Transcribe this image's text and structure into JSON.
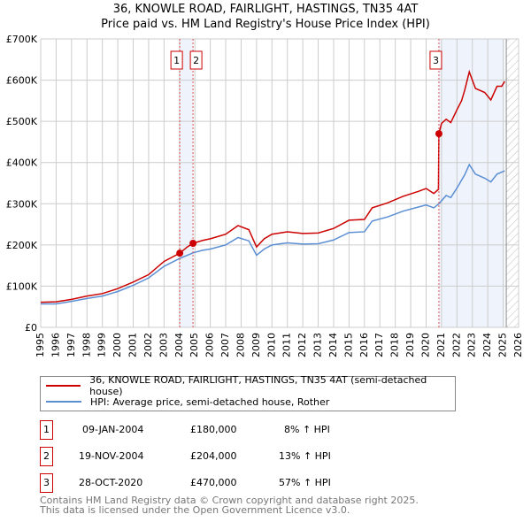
{
  "title": "36, KNOWLE ROAD, FAIRLIGHT, HASTINGS, TN35 4AT",
  "subtitle": "Price paid vs. HM Land Registry's House Price Index (HPI)",
  "chart_data": {
    "type": "line",
    "xlim": [
      1995,
      2026
    ],
    "ylim": [
      0,
      700000
    ],
    "x_ticks": [
      "1995",
      "1996",
      "1997",
      "1998",
      "1999",
      "2000",
      "2001",
      "2002",
      "2003",
      "2004",
      "2005",
      "2006",
      "2007",
      "2008",
      "2009",
      "2010",
      "2011",
      "2012",
      "2013",
      "2014",
      "2015",
      "2016",
      "2017",
      "2018",
      "2019",
      "2020",
      "2021",
      "2022",
      "2023",
      "2024",
      "2025",
      "2026"
    ],
    "y_ticks": [
      "£0",
      "£100K",
      "£200K",
      "£300K",
      "£400K",
      "£500K",
      "£600K",
      "£700K"
    ],
    "series": [
      {
        "name": "36, KNOWLE ROAD, FAIRLIGHT, HASTINGS, TN35 4AT (semi-detached house)",
        "color": "#cc0000",
        "points": [
          [
            1995,
            61000
          ],
          [
            1996,
            62000
          ],
          [
            1997,
            68000
          ],
          [
            1998,
            76000
          ],
          [
            1999,
            82000
          ],
          [
            2000,
            94000
          ],
          [
            2001,
            110000
          ],
          [
            2002,
            128000
          ],
          [
            2003,
            160000
          ],
          [
            2004.02,
            180000
          ],
          [
            2004.5,
            195000
          ],
          [
            2004.88,
            204000
          ],
          [
            2005.5,
            211000
          ],
          [
            2006,
            215000
          ],
          [
            2007,
            226000
          ],
          [
            2007.8,
            247000
          ],
          [
            2008.5,
            237000
          ],
          [
            2009.0,
            195000
          ],
          [
            2009.5,
            215000
          ],
          [
            2010,
            226000
          ],
          [
            2011,
            232000
          ],
          [
            2012,
            228000
          ],
          [
            2013,
            229000
          ],
          [
            2014,
            240000
          ],
          [
            2015,
            260000
          ],
          [
            2016,
            262000
          ],
          [
            2016.5,
            290000
          ],
          [
            2017.5,
            302000
          ],
          [
            2018.5,
            318000
          ],
          [
            2019.5,
            330000
          ],
          [
            2020,
            337000
          ],
          [
            2020.5,
            325000
          ],
          [
            2020.8,
            335000
          ],
          [
            2020.83,
            470000
          ],
          [
            2021,
            495000
          ],
          [
            2021.3,
            505000
          ],
          [
            2021.6,
            497000
          ],
          [
            2022,
            528000
          ],
          [
            2022.3,
            550000
          ],
          [
            2022.5,
            575000
          ],
          [
            2022.8,
            620000
          ],
          [
            2023.2,
            580000
          ],
          [
            2023.8,
            570000
          ],
          [
            2024.2,
            552000
          ],
          [
            2024.6,
            585000
          ],
          [
            2024.9,
            585000
          ],
          [
            2025.1,
            597000
          ]
        ]
      },
      {
        "name": "HPI: Average price, semi-detached house, Rother",
        "color": "#5b8fd4",
        "points": [
          [
            1995,
            57000
          ],
          [
            1996,
            57000
          ],
          [
            1997,
            63000
          ],
          [
            1998,
            70000
          ],
          [
            1999,
            76000
          ],
          [
            2000,
            87000
          ],
          [
            2001,
            102000
          ],
          [
            2002,
            120000
          ],
          [
            2003,
            148000
          ],
          [
            2004,
            167000
          ],
          [
            2004.9,
            181000
          ],
          [
            2005.5,
            187000
          ],
          [
            2006,
            190000
          ],
          [
            2007,
            200000
          ],
          [
            2007.8,
            218000
          ],
          [
            2008.5,
            210000
          ],
          [
            2009.0,
            175000
          ],
          [
            2009.5,
            190000
          ],
          [
            2010,
            200000
          ],
          [
            2011,
            205000
          ],
          [
            2012,
            202000
          ],
          [
            2013,
            203000
          ],
          [
            2014,
            212000
          ],
          [
            2015,
            230000
          ],
          [
            2016,
            232000
          ],
          [
            2016.5,
            258000
          ],
          [
            2017.5,
            268000
          ],
          [
            2018.5,
            282000
          ],
          [
            2019.5,
            292000
          ],
          [
            2020,
            297000
          ],
          [
            2020.5,
            290000
          ],
          [
            2020.83,
            300000
          ],
          [
            2021.3,
            320000
          ],
          [
            2021.6,
            315000
          ],
          [
            2022,
            338000
          ],
          [
            2022.5,
            370000
          ],
          [
            2022.8,
            395000
          ],
          [
            2023.2,
            372000
          ],
          [
            2023.8,
            362000
          ],
          [
            2024.2,
            353000
          ],
          [
            2024.6,
            372000
          ],
          [
            2025.1,
            380000
          ]
        ]
      }
    ],
    "sales": [
      {
        "label": "1",
        "x": 2004.02,
        "y": 180000
      },
      {
        "label": "2",
        "x": 2004.88,
        "y": 204000
      },
      {
        "label": "3",
        "x": 2020.83,
        "y": 470000
      }
    ],
    "shaded_ranges": [
      [
        2004.02,
        2004.88
      ],
      [
        2020.83,
        2025.1
      ]
    ],
    "forecast_hatch_from": 2025.2
  },
  "legend": {
    "items": [
      "36, KNOWLE ROAD, FAIRLIGHT, HASTINGS, TN35 4AT (semi-detached house)",
      "HPI: Average price, semi-detached house, Rother"
    ]
  },
  "transactions": [
    {
      "num": "1",
      "date": "09-JAN-2004",
      "price": "£180,000",
      "hpi": "8% ↑ HPI"
    },
    {
      "num": "2",
      "date": "19-NOV-2004",
      "price": "£204,000",
      "hpi": "13% ↑ HPI"
    },
    {
      "num": "3",
      "date": "28-OCT-2020",
      "price": "£470,000",
      "hpi": "57% ↑ HPI"
    }
  ],
  "footer": [
    "Contains HM Land Registry data © Crown copyright and database right 2025.",
    "This data is licensed under the Open Government Licence v3.0."
  ]
}
